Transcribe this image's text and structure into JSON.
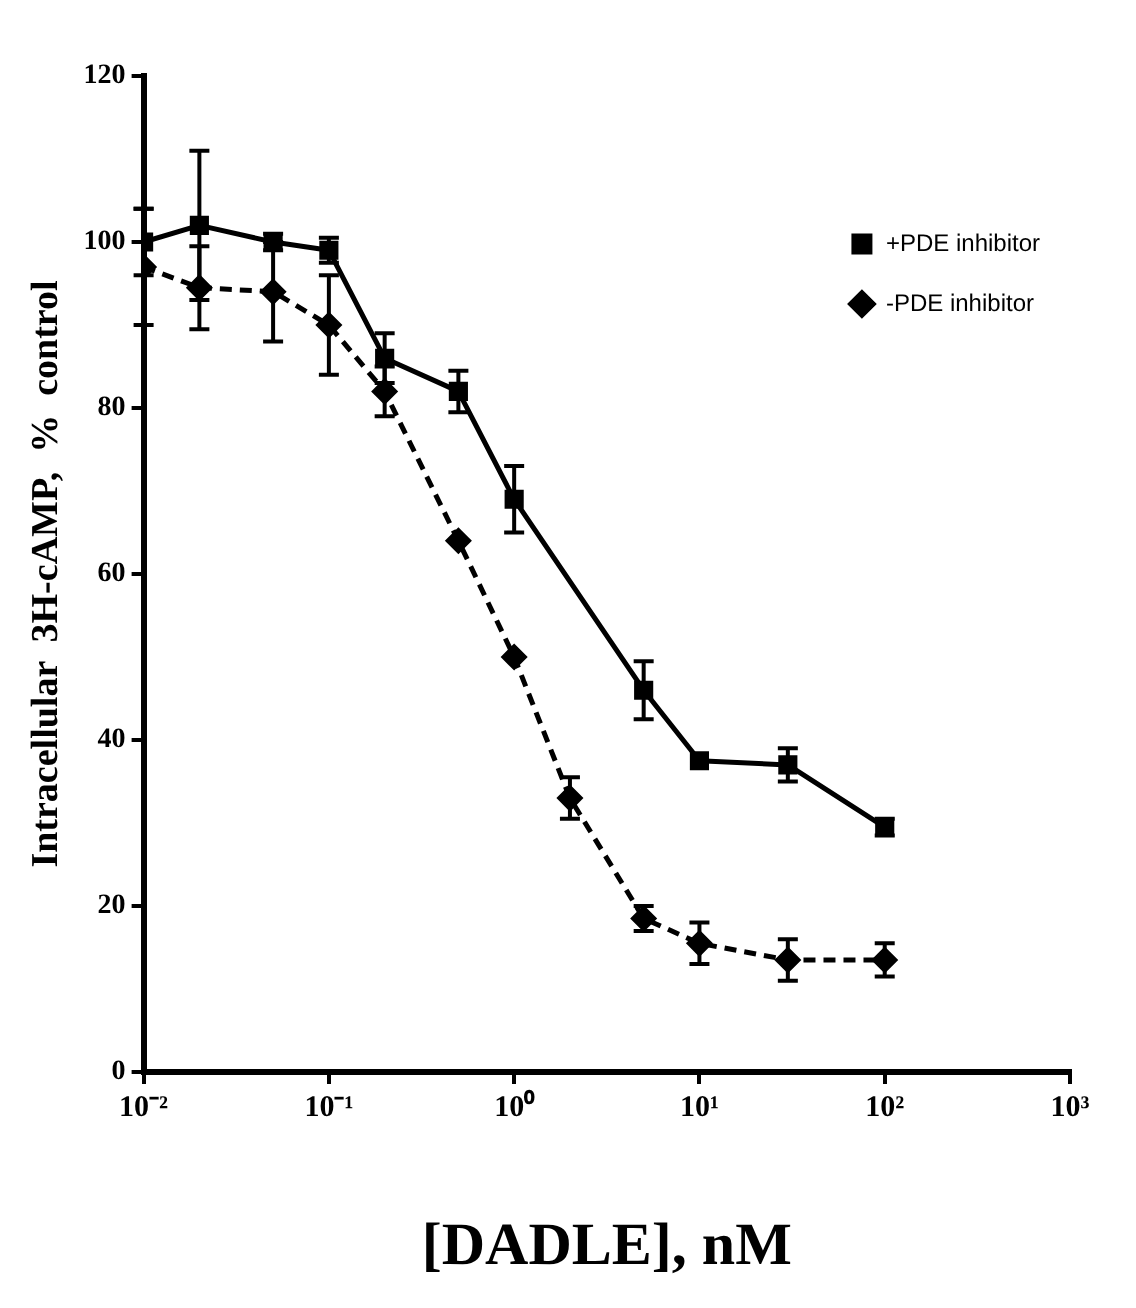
{
  "chart_data": {
    "type": "line",
    "xlabel": "[DADLE], nM",
    "ylabel": "Intracellular  3H-cAMP,  %  control",
    "log": "x",
    "xlim": [
      0.01,
      1000
    ],
    "xticks": [
      {
        "value": 0.01,
        "label": "10⁻²"
      },
      {
        "value": 0.1,
        "label": "10⁻¹"
      },
      {
        "value": 1,
        "label": "10⁰"
      },
      {
        "value": 10,
        "label": "10¹"
      },
      {
        "value": 100,
        "label": "10²"
      },
      {
        "value": 1000,
        "label": "10³"
      }
    ],
    "ylim": [
      0,
      120
    ],
    "yticks": [
      0,
      20,
      40,
      60,
      80,
      100,
      120
    ],
    "grid": false,
    "legend": "top right",
    "series": [
      {
        "name": "+PDE inhibitor",
        "color": "#000000",
        "marker": "square",
        "line_style": "solid",
        "x": [
          0.01,
          0.02,
          0.05,
          0.1,
          0.2,
          0.5,
          1,
          5,
          10,
          30,
          100
        ],
        "values": [
          100,
          102,
          100,
          99,
          86,
          82,
          69,
          46,
          37.5,
          37,
          29.5
        ],
        "errors": [
          4,
          9,
          1,
          1.5,
          3,
          2.5,
          4,
          3.5,
          null,
          2,
          1
        ]
      },
      {
        "name": "-PDE inhibitor",
        "color": "#000000",
        "marker": "diamond",
        "line_style": "dashed",
        "x": [
          0.01,
          0.02,
          0.05,
          0.1,
          0.2,
          0.5,
          1,
          2,
          5,
          10,
          30,
          100
        ],
        "values": [
          97,
          94.5,
          94,
          90,
          82,
          64,
          50,
          33,
          18.5,
          15.5,
          13.5,
          13.5
        ],
        "errors": [
          7,
          5,
          6,
          6,
          3,
          null,
          null,
          2.5,
          1.5,
          2.5,
          2.5,
          2
        ]
      }
    ]
  }
}
